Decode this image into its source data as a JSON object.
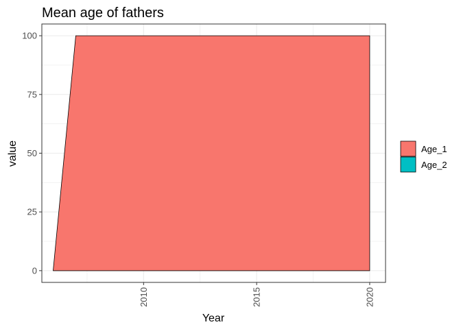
{
  "chart_data": {
    "type": "area",
    "title": "Mean age of fathers",
    "xlabel": "Year",
    "ylabel": "value",
    "x_ticks": [
      2010,
      2015,
      2020
    ],
    "y_ticks": [
      0,
      25,
      50,
      75,
      100
    ],
    "xlim": [
      2005.5,
      2020.7
    ],
    "ylim": [
      -5,
      105
    ],
    "stacked": true,
    "grid": true,
    "legend_position": "right",
    "series": [
      {
        "name": "Age_1",
        "color": "#F8766D",
        "points": [
          {
            "x": 2006,
            "y": 0
          },
          {
            "x": 2007,
            "y": 100
          },
          {
            "x": 2008,
            "y": 100
          },
          {
            "x": 2009,
            "y": 100
          },
          {
            "x": 2010,
            "y": 100
          },
          {
            "x": 2011,
            "y": 100
          },
          {
            "x": 2012,
            "y": 100
          },
          {
            "x": 2013,
            "y": 100
          },
          {
            "x": 2014,
            "y": 100
          },
          {
            "x": 2015,
            "y": 100
          },
          {
            "x": 2016,
            "y": 100
          },
          {
            "x": 2017,
            "y": 100
          },
          {
            "x": 2018,
            "y": 100
          },
          {
            "x": 2019,
            "y": 100
          },
          {
            "x": 2020,
            "y": 100
          }
        ]
      },
      {
        "name": "Age_2",
        "color": "#00BFC4",
        "points": [
          {
            "x": 2006,
            "y": 0
          },
          {
            "x": 2007,
            "y": 0
          },
          {
            "x": 2008,
            "y": 0
          },
          {
            "x": 2009,
            "y": 0
          },
          {
            "x": 2010,
            "y": 0
          },
          {
            "x": 2011,
            "y": 0
          },
          {
            "x": 2012,
            "y": 0
          },
          {
            "x": 2013,
            "y": 0
          },
          {
            "x": 2014,
            "y": 0
          },
          {
            "x": 2015,
            "y": 0
          },
          {
            "x": 2016,
            "y": 0
          },
          {
            "x": 2017,
            "y": 0
          },
          {
            "x": 2018,
            "y": 0
          },
          {
            "x": 2019,
            "y": 0
          },
          {
            "x": 2020,
            "y": 0
          }
        ]
      }
    ]
  }
}
